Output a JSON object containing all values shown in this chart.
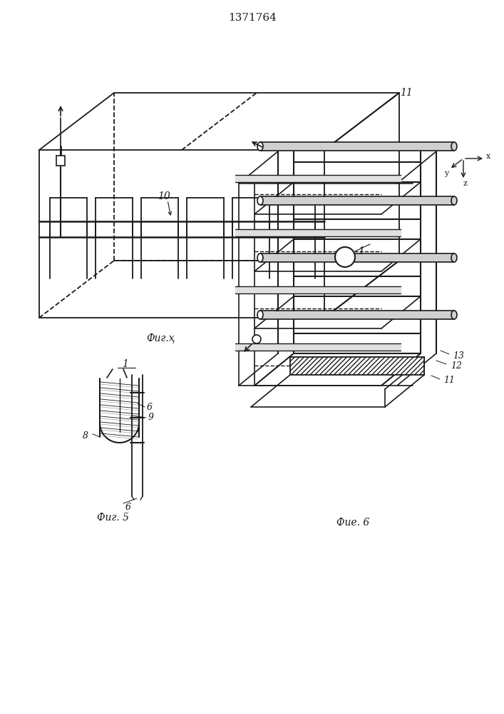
{
  "title": "1371764",
  "fig4_label": "Фиг.ҳ",
  "fig5_label": "Фиг. 5",
  "fig6_label": "Фие. 6",
  "label_1": "1",
  "label_10": "10",
  "label_11": "11",
  "label_6a": "6",
  "label_6b": "6",
  "label_8": "8",
  "label_9": "9",
  "label_11b": "11",
  "label_12": "12",
  "label_13": "13",
  "label_x": "x",
  "label_y": "y",
  "label_z": "z",
  "line_color": "#1a1a1a",
  "bg_color": "#ffffff"
}
